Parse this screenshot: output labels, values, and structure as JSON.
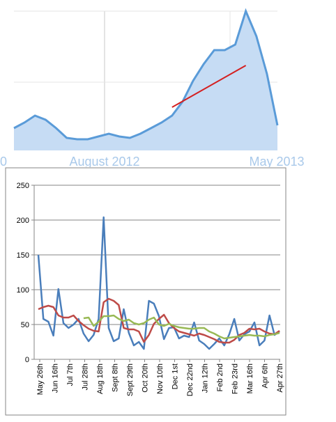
{
  "chart_data": [
    {
      "type": "area",
      "title": "",
      "x_tick_labels": [
        "August 2012",
        "May 2013"
      ],
      "x_left_partial_label": "0",
      "series": [
        {
          "values": [
            0.16,
            0.2,
            0.25,
            0.22,
            0.16,
            0.09,
            0.08,
            0.08,
            0.1,
            0.12,
            0.1,
            0.09,
            0.12,
            0.16,
            0.2,
            0.25,
            0.35,
            0.5,
            0.62,
            0.72,
            0.72,
            0.76,
            1.0,
            0.82,
            0.55,
            0.18
          ]
        }
      ],
      "trend_line": {
        "from_index": 15,
        "to_index": 22,
        "values": [
          0.31,
          0.61
        ]
      },
      "colors": {
        "area_fill": "#c6dcf4",
        "area_line": "#5a9bd8",
        "trend": "#d42020",
        "grid": "#dddddd",
        "label": "#a9c9ea"
      }
    },
    {
      "type": "line",
      "title": "",
      "xlabel": "",
      "ylabel": "",
      "ylim": [
        0,
        250
      ],
      "y_ticks": [
        0,
        50,
        100,
        150,
        200,
        250
      ],
      "grid": true,
      "legend": "none",
      "x_tick_labels": [
        "May 26th",
        "Jun 16th",
        "Jul 7th",
        "Jul 28th",
        "Aug 18th",
        "Sept 8th",
        "Sept 29th",
        "Oct 20th",
        "Nov 10th",
        "Dec 1st",
        "Dec 22nd",
        "Jan 12th",
        "Feb 2nd",
        "Feb 23rd",
        "Mar 16th",
        "Apr 6th",
        "Apr 27th"
      ],
      "colors": {
        "series_1": "#4a7ebb",
        "series_2": "#be4b48",
        "series_3": "#98b954"
      },
      "series": [
        {
          "values": [
            150,
            58,
            54,
            34,
            101,
            52,
            45,
            50,
            58,
            37,
            26,
            35,
            58,
            204,
            45,
            26,
            30,
            72,
            38,
            20,
            25,
            15,
            84,
            80,
            62,
            29,
            45,
            46,
            30,
            34,
            32,
            53,
            27,
            22,
            15,
            22,
            30,
            20,
            36,
            58,
            27,
            36,
            40,
            53,
            20,
            27,
            63,
            35,
            40
          ]
        },
        {
          "values": [
            72,
            75,
            77,
            75,
            63,
            60,
            60,
            63,
            55,
            49,
            44,
            41,
            40,
            82,
            87,
            84,
            78,
            45,
            43,
            43,
            40,
            25,
            35,
            51,
            58,
            64,
            52,
            45,
            40,
            38,
            36,
            34,
            37,
            35,
            32,
            29,
            25,
            24,
            24,
            28,
            35,
            38,
            44,
            43,
            44,
            40,
            37,
            36,
            41
          ]
        },
        {
          "values": [
            null,
            null,
            null,
            null,
            null,
            null,
            null,
            null,
            null,
            59,
            60,
            48,
            54,
            62,
            62,
            63,
            58,
            55,
            57,
            52,
            50,
            52,
            57,
            60,
            50,
            48,
            51,
            48,
            46,
            45,
            44,
            44,
            45,
            45,
            40,
            37,
            33,
            30,
            31,
            32,
            33,
            34,
            35,
            34,
            34,
            33,
            35,
            36,
            38
          ]
        }
      ]
    }
  ]
}
